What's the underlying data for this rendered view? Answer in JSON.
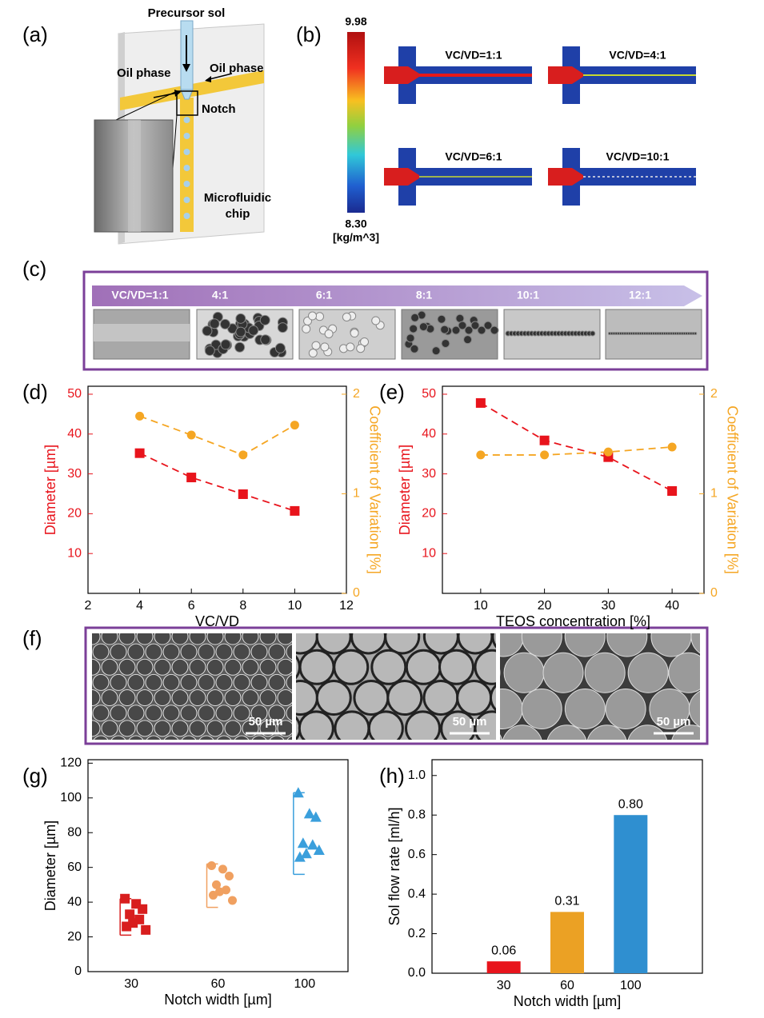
{
  "panel_labels": [
    "(a)",
    "(b)",
    "(c)",
    "(d)",
    "(e)",
    "(f)",
    "(g)",
    "(h)"
  ],
  "panel_a": {
    "precursor": "Precursor sol",
    "oil_left": "Oil phase",
    "oil_right": "Oil phase",
    "notch": "Notch",
    "chip": "Microfluidic chip"
  },
  "panel_b": {
    "scale_max": "9.98",
    "scale_min": "8.30",
    "unit": "[kg/m^3]",
    "cases": [
      "VC/VD=1:1",
      "VC/VD=4:1",
      "VC/VD=6:1",
      "VC/VD=10:1"
    ]
  },
  "panel_c": {
    "ratios": [
      "VC/VD=1:1",
      "4:1",
      "6:1",
      "8:1",
      "10:1",
      "12:1"
    ]
  },
  "panel_f": {
    "scale_bars": [
      "50 µm",
      "50 µm",
      "50 µm"
    ]
  },
  "chart_data": [
    {
      "type": "line",
      "x": [
        4,
        6,
        8,
        10
      ],
      "xlim": [
        2,
        12
      ],
      "xticks": [
        2,
        4,
        6,
        8,
        10,
        12
      ],
      "ylim": [
        0,
        52
      ],
      "yticks": [
        10,
        20,
        30,
        40,
        50
      ],
      "y2lim": [
        0,
        2.08
      ],
      "y2ticks": [
        0,
        1,
        2
      ],
      "xlabel": "VC/VD",
      "ylabel": "Diameter [µm]",
      "y2label": "Coefficient of Variation [%]",
      "line_style": "dashed",
      "series": [
        {
          "color": "#e8141c",
          "marker": "square",
          "values": [
            35.2,
            29.1,
            24.9,
            20.7
          ]
        },
        {
          "color": "#f5a623",
          "marker": "circle",
          "axis": "y2",
          "values": [
            1.78,
            1.59,
            1.39,
            1.69
          ]
        }
      ]
    },
    {
      "type": "line",
      "x": [
        10,
        20,
        30,
        40
      ],
      "xlim": [
        4,
        45
      ],
      "xticks": [
        10,
        20,
        30,
        40
      ],
      "ylim": [
        0,
        52
      ],
      "yticks": [
        10,
        20,
        30,
        40,
        50
      ],
      "y2lim": [
        0,
        2.08
      ],
      "y2ticks": [
        0,
        1,
        2
      ],
      "xlabel": "TEOS concentration [%]",
      "ylabel": "Diameter [µm]",
      "y2label": "Coefficient of Variation [%]",
      "line_style": "dashed",
      "series": [
        {
          "color": "#e8141c",
          "marker": "square",
          "values": [
            47.8,
            38.4,
            34.2,
            25.7
          ]
        },
        {
          "color": "#f5a623",
          "marker": "circle",
          "axis": "y2",
          "values": [
            1.39,
            1.39,
            1.42,
            1.47
          ]
        }
      ]
    },
    {
      "type": "scatter",
      "categories": [
        "30",
        "60",
        "100"
      ],
      "ylim": [
        0,
        122
      ],
      "yticks": [
        0,
        20,
        40,
        60,
        80,
        100,
        120
      ],
      "xlabel": "Notch width [µm]",
      "ylabel": "Diameter [µm]",
      "series": [
        {
          "color": "#d81e1e",
          "marker": "square",
          "values": [
            42,
            39,
            36,
            33,
            30,
            28,
            26,
            24
          ],
          "range": [
            21,
            42
          ]
        },
        {
          "color": "#f0a060",
          "marker": "circle",
          "values": [
            61,
            59,
            55,
            50,
            47,
            46,
            44,
            41
          ],
          "range": [
            37,
            62
          ]
        },
        {
          "color": "#3a9fdc",
          "marker": "triangle",
          "values": [
            103,
            91,
            89,
            74,
            73,
            68,
            66,
            70
          ],
          "range": [
            56,
            103
          ]
        }
      ]
    },
    {
      "type": "bar",
      "categories": [
        "30",
        "60",
        "100"
      ],
      "values": [
        0.06,
        0.31,
        0.8
      ],
      "value_labels": [
        "0.06",
        "0.31",
        "0.80"
      ],
      "colors": [
        "#e8141c",
        "#eba124",
        "#2f8fd0"
      ],
      "ylim": [
        0,
        1.08
      ],
      "yticks": [
        {
          "value": 0,
          "label": "0.0"
        },
        0.2,
        0.4,
        0.6,
        0.8,
        {
          "value": 1,
          "label": "1.0"
        }
      ],
      "xlabel": "Notch width [µm]",
      "ylabel": "Sol flow rate [ml/h]"
    }
  ]
}
